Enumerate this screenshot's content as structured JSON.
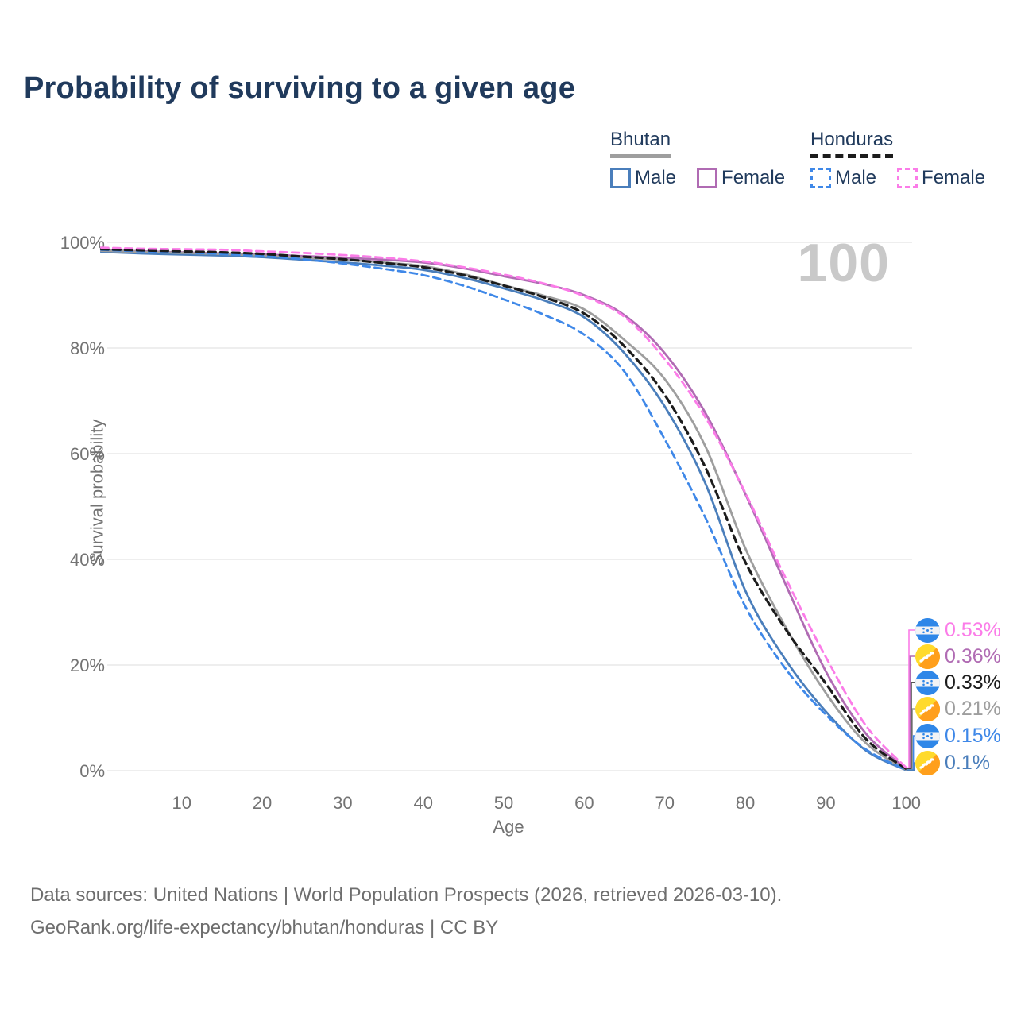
{
  "title": "Probability of surviving to a given age",
  "watermark": "100",
  "legend": {
    "bhutan": {
      "label": "Bhutan",
      "male": "Male",
      "female": "Female"
    },
    "honduras": {
      "label": "Honduras",
      "male": "Male",
      "female": "Female"
    }
  },
  "axes": {
    "y_title": "Survival probability",
    "x_title": "Age",
    "y_ticks": [
      "0%",
      "20%",
      "40%",
      "60%",
      "80%",
      "100%"
    ],
    "x_ticks": [
      "10",
      "20",
      "30",
      "40",
      "50",
      "60",
      "70",
      "80",
      "90",
      "100"
    ]
  },
  "end_labels": [
    {
      "flag": "honduras",
      "value": "0.53%",
      "color": "#fb7ce8",
      "series": "Honduras Female"
    },
    {
      "flag": "bhutan",
      "value": "0.36%",
      "color": "#b06bb3",
      "series": "Bhutan Female"
    },
    {
      "flag": "honduras",
      "value": "0.33%",
      "color": "#1c1c1c",
      "series": "Honduras Both sexes"
    },
    {
      "flag": "bhutan",
      "value": "0.21%",
      "color": "#9e9e9e",
      "series": "Bhutan Both sexes"
    },
    {
      "flag": "honduras",
      "value": "0.15%",
      "color": "#3f88e8",
      "series": "Honduras Male"
    },
    {
      "flag": "bhutan",
      "value": "0.1%",
      "color": "#4a7ebb",
      "series": "Bhutan Male"
    }
  ],
  "footer": {
    "line1": "Data sources: United Nations | World Population Prospects (2026, retrieved 2026-03-10).",
    "line2": "GeoRank.org/life-expectancy/bhutan/honduras | CC BY"
  },
  "chart_data": {
    "type": "line",
    "title": "Probability of surviving to a given age",
    "xlabel": "Age",
    "ylabel": "Survival probability",
    "xlim": [
      0,
      100
    ],
    "ylim": [
      0,
      100
    ],
    "grid": "horizontal",
    "x": [
      0,
      5,
      10,
      15,
      20,
      25,
      30,
      35,
      40,
      45,
      50,
      55,
      60,
      65,
      70,
      75,
      80,
      85,
      90,
      95,
      100
    ],
    "series": [
      {
        "name": "Bhutan Male",
        "country": "Bhutan",
        "sex": "Male",
        "color": "#4a7ebb",
        "line_style": "solid",
        "values": [
          98.2,
          97.9,
          97.7,
          97.5,
          97.2,
          96.7,
          96.2,
          95.6,
          94.8,
          93.3,
          91.3,
          89.0,
          85.8,
          79.0,
          68.9,
          54.5,
          34.1,
          21.0,
          11.2,
          3.8,
          0.1
        ]
      },
      {
        "name": "Bhutan Female",
        "country": "Bhutan",
        "sex": "Female",
        "color": "#b06bb3",
        "line_style": "solid",
        "values": [
          98.5,
          98.3,
          98.1,
          97.9,
          97.7,
          97.4,
          97.1,
          96.7,
          96.2,
          95.1,
          93.6,
          92.1,
          90.0,
          86.2,
          79.0,
          67.8,
          52.4,
          35.3,
          18.8,
          7.0,
          0.36
        ]
      },
      {
        "name": "Bhutan Both sexes",
        "country": "Bhutan",
        "sex": "Both sexes",
        "color": "#9e9e9e",
        "line_style": "solid",
        "values": [
          98.4,
          98.2,
          98.0,
          97.8,
          97.5,
          97.1,
          96.7,
          96.2,
          95.5,
          94.0,
          91.9,
          89.9,
          87.3,
          81.5,
          74.1,
          61.5,
          42.1,
          27.2,
          14.7,
          5.2,
          0.21
        ]
      },
      {
        "name": "Honduras Male",
        "country": "Honduras",
        "sex": "Male",
        "color": "#3f88e8",
        "line_style": "dashed",
        "values": [
          98.6,
          98.3,
          98.1,
          97.8,
          97.4,
          96.8,
          96.0,
          95.0,
          93.8,
          91.8,
          89.2,
          86.3,
          82.5,
          75.5,
          62.7,
          48.0,
          31.1,
          19.3,
          10.6,
          4.0,
          0.15
        ]
      },
      {
        "name": "Honduras Both sexes",
        "country": "Honduras",
        "sex": "Both sexes",
        "color": "#1c1c1c",
        "line_style": "dashed",
        "values": [
          98.7,
          98.5,
          98.3,
          98.1,
          97.8,
          97.3,
          96.8,
          96.1,
          95.3,
          93.8,
          91.8,
          89.6,
          86.5,
          80.3,
          71.1,
          57.5,
          39.5,
          26.8,
          16.5,
          6.0,
          0.33
        ]
      },
      {
        "name": "Honduras Female",
        "country": "Honduras",
        "sex": "Female",
        "color": "#fb7ce8",
        "line_style": "dashed",
        "values": [
          99.0,
          98.8,
          98.7,
          98.6,
          98.3,
          98.0,
          97.6,
          97.1,
          96.4,
          95.3,
          93.9,
          92.2,
          89.8,
          85.9,
          77.9,
          67.0,
          52.6,
          36.5,
          21.5,
          8.5,
          0.53
        ]
      }
    ],
    "legend_position": "top-right",
    "end_annotations": {
      "Honduras Female": "0.53%",
      "Bhutan Female": "0.36%",
      "Honduras Both sexes": "0.33%",
      "Bhutan Both sexes": "0.21%",
      "Honduras Male": "0.15%",
      "Bhutan Male": "0.1%"
    }
  }
}
